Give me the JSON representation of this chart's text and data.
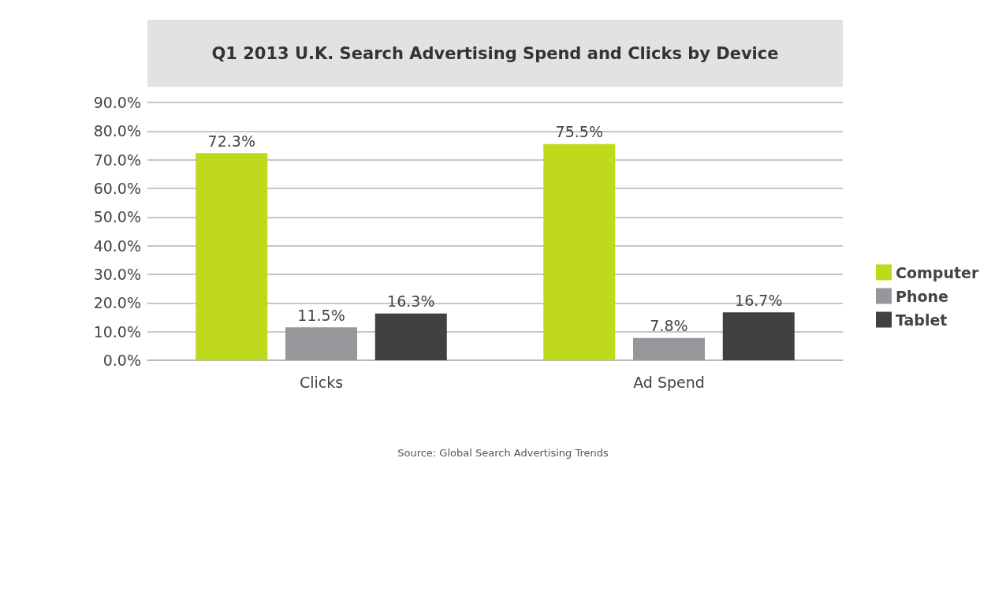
{
  "chart_data": {
    "type": "bar",
    "title": "Q1 2013 U.K. Search Advertising Spend and Clicks by Device",
    "categories": [
      "Clicks",
      "Ad Spend"
    ],
    "series": [
      {
        "name": "Computer",
        "color": "#bfd91c",
        "values": [
          72.3,
          75.5
        ],
        "value_labels": [
          "72.3%",
          "75.5%"
        ]
      },
      {
        "name": "Phone",
        "color": "#97979b",
        "values": [
          11.5,
          7.8
        ],
        "value_labels": [
          "11.5%",
          "7.8%"
        ]
      },
      {
        "name": "Tablet",
        "color": "#414042",
        "values": [
          16.3,
          16.7
        ],
        "value_labels": [
          "16.3%",
          "16.7%"
        ]
      }
    ],
    "ylim": [
      0,
      90
    ],
    "yticks": [
      {
        "value": 0,
        "label": "0.0%"
      },
      {
        "value": 10,
        "label": "10.0%"
      },
      {
        "value": 20,
        "label": "20.0%"
      },
      {
        "value": 30,
        "label": "30.0%"
      },
      {
        "value": 40,
        "label": "40.0%"
      },
      {
        "value": 50,
        "label": "50.0%"
      },
      {
        "value": 60,
        "label": "60.0%"
      },
      {
        "value": 70,
        "label": "70.0%"
      },
      {
        "value": 80,
        "label": "80.0%"
      },
      {
        "value": 90,
        "label": "90.0%"
      }
    ],
    "grid": "y",
    "legend": "right",
    "annotations": [
      "Source: Global Search Advertising Trends"
    ]
  }
}
